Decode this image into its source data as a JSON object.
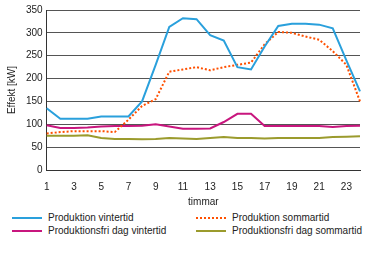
{
  "chart_data": {
    "type": "line",
    "x_label": "timmar",
    "y_label": "Effekt [kW]",
    "categories": [
      "1",
      null,
      "3",
      null,
      "5",
      null,
      "7",
      null,
      "9",
      null,
      "11",
      null,
      "13",
      null,
      "15",
      null,
      "17",
      null,
      "19",
      null,
      "21",
      null,
      "23",
      null
    ],
    "series": [
      {
        "name": "Produktion vintertid",
        "color": "#2aa0dc",
        "line_style": "solid",
        "values": [
          135,
          112,
          112,
          112,
          117,
          117,
          117,
          150,
          230,
          313,
          332,
          330,
          295,
          283,
          225,
          220,
          270,
          315,
          320,
          320,
          318,
          310,
          240,
          172
        ]
      },
      {
        "name": "Produktion sommartid",
        "color": "#ff5000",
        "line_style": "dotted",
        "values": [
          80,
          83,
          85,
          85,
          85,
          83,
          110,
          140,
          155,
          215,
          220,
          225,
          218,
          225,
          230,
          235,
          275,
          302,
          300,
          292,
          285,
          260,
          230,
          150
        ]
      },
      {
        "name": "Produktionsfri dag vintertid",
        "color": "#c8167e",
        "line_style": "solid",
        "values": [
          98,
          92,
          92,
          93,
          95,
          96,
          96,
          97,
          100,
          95,
          90,
          90,
          91,
          105,
          123,
          123,
          96,
          96,
          96,
          96,
          96,
          94,
          96,
          97
        ]
      },
      {
        "name": "Produktionsfri dag sommartid",
        "color": "#9b9b2d",
        "line_style": "solid",
        "values": [
          75,
          75,
          75,
          76,
          70,
          68,
          68,
          67,
          68,
          70,
          69,
          68,
          70,
          72,
          70,
          70,
          69,
          70,
          70,
          70,
          70,
          72,
          73,
          74
        ]
      }
    ],
    "ylim": [
      0,
      350
    ],
    "yticks": [
      0,
      50,
      100,
      150,
      200,
      250,
      300,
      350
    ],
    "grid": true,
    "legend": "bottom"
  }
}
